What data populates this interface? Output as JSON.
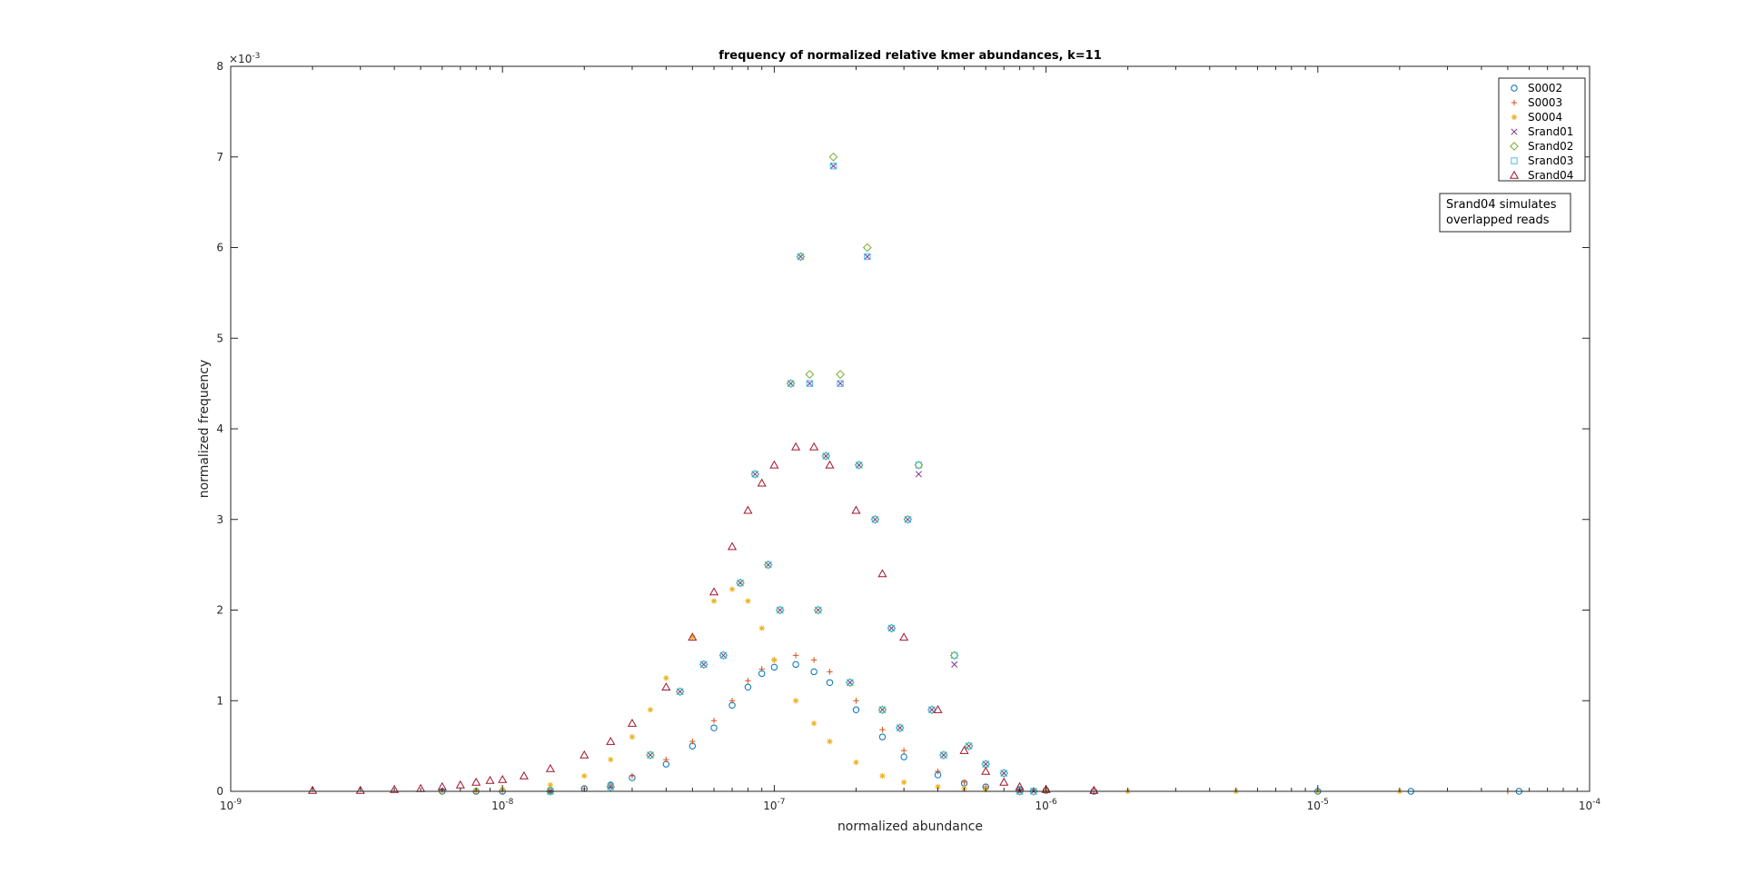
{
  "chart_data": {
    "type": "scatter",
    "title": "frequency of normalized relative kmer abundances, k=11",
    "xlabel": "normalized abundance",
    "ylabel": "normalized frequency",
    "x_scale": "log",
    "xlim": [
      1e-09,
      0.0001
    ],
    "ylim": [
      0,
      0.008
    ],
    "y_exponent_label": "×10",
    "y_exponent_value": "-3",
    "x_tick_base": "10",
    "x_ticks": [
      {
        "exp": "-9",
        "value": 1e-09
      },
      {
        "exp": "-8",
        "value": 1e-08
      },
      {
        "exp": "-7",
        "value": 1e-07
      },
      {
        "exp": "-6",
        "value": 1e-06
      },
      {
        "exp": "-5",
        "value": 1e-05
      },
      {
        "exp": "-4",
        "value": 0.0001
      }
    ],
    "y_ticks": [
      {
        "label": "0",
        "value": 0
      },
      {
        "label": "1",
        "value": 0.001
      },
      {
        "label": "2",
        "value": 0.002
      },
      {
        "label": "3",
        "value": 0.003
      },
      {
        "label": "4",
        "value": 0.004
      },
      {
        "label": "5",
        "value": 0.005
      },
      {
        "label": "6",
        "value": 0.006
      },
      {
        "label": "7",
        "value": 0.007
      },
      {
        "label": "8",
        "value": 0.008
      }
    ],
    "grid": false,
    "legend_position": "top-right",
    "annotation": [
      "Srand04 simulates",
      "overlapped reads"
    ],
    "series": [
      {
        "name": "S0002",
        "marker": "circle",
        "color": "#0072BD",
        "x": [
          6e-09,
          8e-09,
          1e-08,
          1.5e-08,
          2e-08,
          2.5e-08,
          3e-08,
          4e-08,
          5e-08,
          6e-08,
          7e-08,
          8e-08,
          9e-08,
          1e-07,
          1.2e-07,
          1.4e-07,
          1.6e-07,
          2e-07,
          2.5e-07,
          3e-07,
          4e-07,
          5e-07,
          6e-07,
          8e-07,
          1e-06,
          1.5e-06,
          1e-05,
          2.2e-05,
          5.5e-05
        ],
        "y": [
          0,
          0,
          0,
          1e-05,
          3e-05,
          7e-05,
          0.00015,
          0.0003,
          0.0005,
          0.0007,
          0.00095,
          0.00115,
          0.0013,
          0.00137,
          0.0014,
          0.00132,
          0.0012,
          0.0009,
          0.0006,
          0.00038,
          0.00018,
          9e-05,
          5e-05,
          2e-05,
          1e-05,
          0,
          0,
          0,
          0
        ]
      },
      {
        "name": "S0003",
        "marker": "plus",
        "color": "#D95319",
        "x": [
          8e-09,
          1e-08,
          1.5e-08,
          2e-08,
          2.5e-08,
          3e-08,
          4e-08,
          5e-08,
          6e-08,
          7e-08,
          8e-08,
          9e-08,
          1e-07,
          1.2e-07,
          1.4e-07,
          1.6e-07,
          2e-07,
          2.5e-07,
          3e-07,
          4e-07,
          5e-07,
          6e-07,
          8e-07,
          1e-06,
          1.5e-06,
          5e-05
        ],
        "y": [
          0,
          0,
          1e-05,
          3e-05,
          8e-05,
          0.00017,
          0.00035,
          0.00055,
          0.00078,
          0.001,
          0.00122,
          0.00135,
          0.00145,
          0.0015,
          0.00145,
          0.00132,
          0.001,
          0.00068,
          0.00045,
          0.00022,
          0.0001,
          5e-05,
          2e-05,
          1e-05,
          0,
          0
        ]
      },
      {
        "name": "S0004",
        "marker": "asterisk",
        "color": "#EDB120",
        "x": [
          6e-09,
          8e-09,
          1e-08,
          1.5e-08,
          2e-08,
          2.5e-08,
          3e-08,
          3.5e-08,
          4e-08,
          5e-08,
          6e-08,
          7e-08,
          8e-08,
          9e-08,
          1e-07,
          1.2e-07,
          1.4e-07,
          1.6e-07,
          2e-07,
          2.5e-07,
          3e-07,
          4e-07,
          5e-07,
          6e-07,
          8e-07,
          1e-06,
          2e-06,
          5e-06,
          1e-05,
          2e-05
        ],
        "y": [
          0,
          1e-05,
          2e-05,
          7e-05,
          0.00017,
          0.00035,
          0.0006,
          0.0009,
          0.00125,
          0.0017,
          0.0021,
          0.00223,
          0.0021,
          0.0018,
          0.00145,
          0.001,
          0.00075,
          0.00055,
          0.00032,
          0.00017,
          0.0001,
          5e-05,
          3e-05,
          2e-05,
          1e-05,
          1e-05,
          0,
          0,
          0,
          0
        ]
      },
      {
        "name": "Srand01",
        "marker": "x",
        "color": "#7E2F8E",
        "x": [
          1.5e-08,
          2.5e-08,
          3.5e-08,
          4.5e-08,
          5.5e-08,
          6.5e-08,
          7.5e-08,
          8.5e-08,
          9.5e-08,
          1.05e-07,
          1.15e-07,
          1.25e-07,
          1.35e-07,
          1.45e-07,
          1.55e-07,
          1.65e-07,
          1.75e-07,
          1.9e-07,
          2.05e-07,
          2.2e-07,
          2.35e-07,
          2.5e-07,
          2.7e-07,
          2.9e-07,
          3.1e-07,
          3.4e-07,
          3.8e-07,
          4.2e-07,
          4.6e-07,
          5.2e-07,
          6e-07,
          7e-07,
          8e-07,
          9e-07
        ],
        "y": [
          0,
          5e-05,
          0.0004,
          0.0011,
          0.0014,
          0.0015,
          0.0023,
          0.0035,
          0.0025,
          0.002,
          0.0045,
          0.0059,
          0.0045,
          0.002,
          0.0037,
          0.0069,
          0.0045,
          0.0012,
          0.0036,
          0.0059,
          0.003,
          0.0009,
          0.0018,
          0.0007,
          0.003,
          0.0035,
          0.0009,
          0.0004,
          0.0014,
          0.0005,
          0.0003,
          0.0002,
          0,
          0
        ]
      },
      {
        "name": "Srand02",
        "marker": "diamond",
        "color": "#77AC30",
        "x": [
          1.5e-08,
          2.5e-08,
          3.5e-08,
          4.5e-08,
          5.5e-08,
          6.5e-08,
          7.5e-08,
          8.5e-08,
          9.5e-08,
          1.05e-07,
          1.15e-07,
          1.25e-07,
          1.35e-07,
          1.45e-07,
          1.55e-07,
          1.65e-07,
          1.75e-07,
          1.9e-07,
          2.05e-07,
          2.2e-07,
          2.35e-07,
          2.5e-07,
          2.7e-07,
          2.9e-07,
          3.1e-07,
          3.4e-07,
          3.8e-07,
          4.2e-07,
          4.6e-07,
          5.2e-07,
          6e-07,
          7e-07,
          8e-07,
          9e-07
        ],
        "y": [
          0,
          5e-05,
          0.0004,
          0.0011,
          0.0014,
          0.0015,
          0.0023,
          0.0035,
          0.0025,
          0.002,
          0.0045,
          0.0059,
          0.0046,
          0.002,
          0.0037,
          0.007,
          0.0046,
          0.0012,
          0.0036,
          0.006,
          0.003,
          0.0009,
          0.0018,
          0.0007,
          0.003,
          0.0036,
          0.0009,
          0.0004,
          0.0015,
          0.0005,
          0.0003,
          0.0002,
          0,
          0
        ]
      },
      {
        "name": "Srand03",
        "marker": "square",
        "color": "#4DBEEE",
        "x": [
          1.5e-08,
          2.5e-08,
          3.5e-08,
          4.5e-08,
          5.5e-08,
          6.5e-08,
          7.5e-08,
          8.5e-08,
          9.5e-08,
          1.05e-07,
          1.15e-07,
          1.25e-07,
          1.35e-07,
          1.45e-07,
          1.55e-07,
          1.65e-07,
          1.75e-07,
          1.9e-07,
          2.05e-07,
          2.2e-07,
          2.35e-07,
          2.5e-07,
          2.7e-07,
          2.9e-07,
          3.1e-07,
          3.4e-07,
          3.8e-07,
          4.2e-07,
          4.6e-07,
          5.2e-07,
          6e-07,
          7e-07,
          8e-07,
          9e-07
        ],
        "y": [
          0,
          5e-05,
          0.0004,
          0.0011,
          0.0014,
          0.0015,
          0.0023,
          0.0035,
          0.0025,
          0.002,
          0.0045,
          0.0059,
          0.0045,
          0.002,
          0.0037,
          0.0069,
          0.0045,
          0.0012,
          0.0036,
          0.0059,
          0.003,
          0.0009,
          0.0018,
          0.0007,
          0.003,
          0.0036,
          0.0009,
          0.0004,
          0.0015,
          0.0005,
          0.0003,
          0.0002,
          0,
          0
        ]
      },
      {
        "name": "Srand04",
        "marker": "triangle",
        "color": "#A2142F",
        "x": [
          2e-09,
          3e-09,
          4e-09,
          5e-09,
          6e-09,
          7e-09,
          8e-09,
          9e-09,
          1e-08,
          1.2e-08,
          1.5e-08,
          2e-08,
          2.5e-08,
          3e-08,
          4e-08,
          5e-08,
          6e-08,
          7e-08,
          8e-08,
          9e-08,
          1e-07,
          1.2e-07,
          1.4e-07,
          1.6e-07,
          2e-07,
          2.5e-07,
          3e-07,
          4e-07,
          5e-07,
          6e-07,
          7e-07,
          8e-07,
          1e-06,
          1.5e-06
        ],
        "y": [
          1e-05,
          1e-05,
          2e-05,
          3e-05,
          5e-05,
          7e-05,
          0.0001,
          0.00012,
          0.00013,
          0.00017,
          0.00025,
          0.0004,
          0.00055,
          0.00075,
          0.00115,
          0.0017,
          0.0022,
          0.0027,
          0.0031,
          0.0034,
          0.0036,
          0.0038,
          0.0038,
          0.0036,
          0.0031,
          0.0024,
          0.0017,
          0.0009,
          0.00045,
          0.00022,
          0.0001,
          5e-05,
          2e-05,
          1e-05
        ]
      }
    ]
  }
}
